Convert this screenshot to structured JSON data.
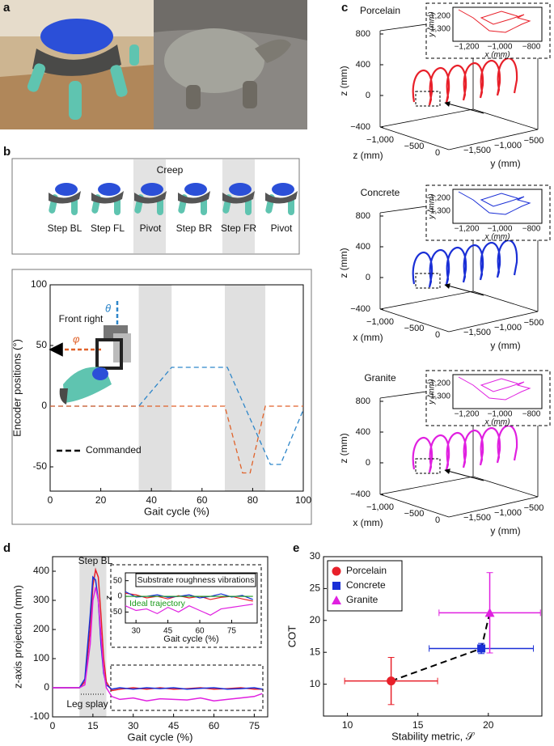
{
  "figure": {
    "panel_a": {
      "label": "a"
    },
    "panel_b": {
      "label": "b",
      "gait": {
        "title": "Creep",
        "steps": [
          "Step BL",
          "Step FL",
          "Pivot",
          "Step BR",
          "Step FR",
          "Pivot"
        ]
      }
    },
    "panel_c": {
      "label": "c",
      "plots": [
        {
          "title": "Porcelain",
          "color": "#e8202a",
          "z_label": "z (mm)",
          "z_ticks": [
            "800",
            "400",
            "0",
            "−400"
          ],
          "x_label": "z (mm)",
          "x_ticks": [
            "−1,000",
            "−500",
            "0"
          ],
          "y_label": "y (mm)",
          "y_ticks": [
            "−1,500",
            "−1,000",
            "−500"
          ],
          "inset": {
            "y_label": "y (mm)",
            "y_ticks": [
              "−1,200",
              "−1,300"
            ],
            "x_label": "x (mm)",
            "x_ticks": [
              "−1,200",
              "−1,000",
              "−800"
            ]
          }
        },
        {
          "title": "Concrete",
          "color": "#1a2fd6",
          "z_label": "z (mm)",
          "z_ticks": [
            "800",
            "400",
            "0",
            "−400"
          ],
          "x_label": "x (mm)",
          "x_ticks": [
            "−1,000",
            "−500",
            "0"
          ],
          "y_label": "y (mm)",
          "y_ticks": [
            "−1,500",
            "−1,000",
            "−500"
          ],
          "inset": {
            "y_label": "y (mm)",
            "y_ticks": [
              "−1,200",
              "−1,300"
            ],
            "x_label": "x (mm)",
            "x_ticks": [
              "−1,200",
              "−1,000",
              "−800"
            ]
          }
        },
        {
          "title": "Granite",
          "color": "#e020e0",
          "z_label": "z (mm)",
          "z_ticks": [
            "800",
            "400",
            "0",
            "−400"
          ],
          "x_label": "x (mm)",
          "x_ticks": [
            "−1,000",
            "−500",
            "0"
          ],
          "y_label": "y (mm)",
          "y_ticks": [
            "−1,500",
            "−1,000",
            "−500"
          ],
          "inset": {
            "y_label": "y (mm)",
            "y_ticks": [
              "−1,200",
              "−1,300"
            ],
            "x_label": "x (mm)",
            "x_ticks": [
              "−1,200",
              "−1,000",
              "−800"
            ]
          }
        }
      ]
    },
    "panel_d": {
      "label": "d"
    },
    "panel_e": {
      "label": "e"
    }
  },
  "chart_data": [
    {
      "type": "line",
      "x_label": "Gait cycle (%)",
      "y_label": "Encoder positions (°)",
      "annotation": "Front right",
      "legend_label": "Commanded",
      "dashed": true,
      "xlim": [
        0,
        100
      ],
      "ylim": [
        -70,
        100
      ],
      "xticks": [
        0,
        20,
        40,
        60,
        80,
        100
      ],
      "yticks": [
        -50,
        0,
        50,
        100
      ],
      "shaded": [
        [
          35,
          48
        ],
        [
          69,
          85
        ]
      ],
      "series": [
        {
          "name": "θ",
          "color": "#2e86c9",
          "x": [
            0,
            35,
            48,
            70,
            87,
            91,
            100
          ],
          "values": [
            0,
            0,
            32,
            32,
            -48,
            -48,
            -3
          ]
        },
        {
          "name": "φ",
          "color": "#e0622a",
          "x": [
            0,
            69,
            76,
            79,
            85,
            100
          ],
          "values": [
            0,
            0,
            -55,
            -55,
            0,
            0
          ]
        }
      ]
    },
    {
      "type": "line",
      "x_label": "Gait cycle (%)",
      "y_label": "z-axis projection (mm)",
      "annotations": [
        "Step BL",
        "Leg splay"
      ],
      "xlim": [
        0,
        80
      ],
      "ylim": [
        -100,
        450
      ],
      "xticks": [
        0,
        15,
        30,
        45,
        60,
        75
      ],
      "yticks": [
        -100,
        0,
        100,
        200,
        300,
        400
      ],
      "shaded": [
        [
          10,
          20
        ]
      ],
      "x": [
        0,
        5,
        10,
        12,
        14,
        15,
        16,
        17,
        18,
        19,
        20,
        22,
        25,
        30,
        35,
        40,
        45,
        50,
        55,
        60,
        65,
        70,
        75,
        78
      ],
      "series": [
        {
          "color": "#e8202a",
          "values": [
            0,
            0,
            0,
            20,
            200,
            350,
            405,
            380,
            250,
            100,
            20,
            -10,
            -5,
            0,
            -5,
            0,
            -5,
            -3,
            0,
            -5,
            -3,
            0,
            -5,
            -5
          ]
        },
        {
          "color": "#1a2fd6",
          "values": [
            0,
            0,
            0,
            30,
            250,
            380,
            370,
            300,
            150,
            50,
            10,
            -5,
            0,
            -5,
            0,
            -3,
            0,
            -5,
            -2,
            0,
            -5,
            -3,
            0,
            -5
          ]
        },
        {
          "color": "#e020e0",
          "values": [
            0,
            0,
            0,
            10,
            150,
            300,
            345,
            300,
            180,
            60,
            0,
            -30,
            -40,
            -35,
            -45,
            -38,
            -40,
            -42,
            -35,
            -45,
            -40,
            -35,
            -30,
            -20
          ]
        }
      ]
    },
    {
      "type": "line",
      "title": "Substrate roughness vibrations",
      "x_label": "Gait cycle (%)",
      "y_label": "z",
      "xlim": [
        25,
        87
      ],
      "ylim": [
        -85,
        75
      ],
      "xticks": [
        30,
        45,
        60,
        75
      ],
      "yticks": [
        -50,
        0,
        50
      ],
      "x": [
        25,
        30,
        35,
        40,
        45,
        50,
        55,
        60,
        65,
        70,
        75,
        80,
        85
      ],
      "series": [
        {
          "color": "#e8202a",
          "values": [
            10,
            5,
            -5,
            0,
            -8,
            2,
            -5,
            0,
            -10,
            -3,
            0,
            -8,
            -15
          ]
        },
        {
          "color": "#1a2fd6",
          "values": [
            15,
            -2,
            0,
            5,
            -3,
            0,
            5,
            -5,
            0,
            8,
            -2,
            3,
            -10
          ]
        },
        {
          "color": "#e020e0",
          "values": [
            -30,
            -45,
            -40,
            -55,
            -35,
            -50,
            -30,
            -45,
            -60,
            -40,
            -35,
            -30,
            -25
          ]
        },
        {
          "name": "Ideal trajectory",
          "color": "#1a9a1a",
          "x": [
            25,
            85
          ],
          "values": [
            0,
            0
          ]
        }
      ]
    },
    {
      "type": "scatter",
      "x_label": "Stability metric, 𝒮",
      "y_label": "COT",
      "legend": "upper left",
      "connect_points": true,
      "xlim": [
        8.3,
        23.8
      ],
      "ylim": [
        5,
        30
      ],
      "xticks": [
        10,
        15,
        20
      ],
      "yticks": [
        10,
        15,
        20,
        25,
        30
      ],
      "series": [
        {
          "name": "Porcelain",
          "color": "#e8202a",
          "marker": "circle",
          "x": [
            13.1
          ],
          "values": [
            10.5
          ],
          "x_err": [
            3.3
          ],
          "y_err": [
            3.7
          ]
        },
        {
          "name": "Concrete",
          "color": "#1a2fd6",
          "marker": "square",
          "x": [
            19.5
          ],
          "values": [
            15.6
          ],
          "x_err": [
            3.7
          ],
          "y_err": [
            0.8
          ]
        },
        {
          "name": "Granite",
          "color": "#e020e0",
          "marker": "triangle",
          "x": [
            20.1
          ],
          "values": [
            21.2
          ],
          "x_err": [
            3.6
          ],
          "y_err": [
            6.3
          ]
        }
      ]
    }
  ]
}
